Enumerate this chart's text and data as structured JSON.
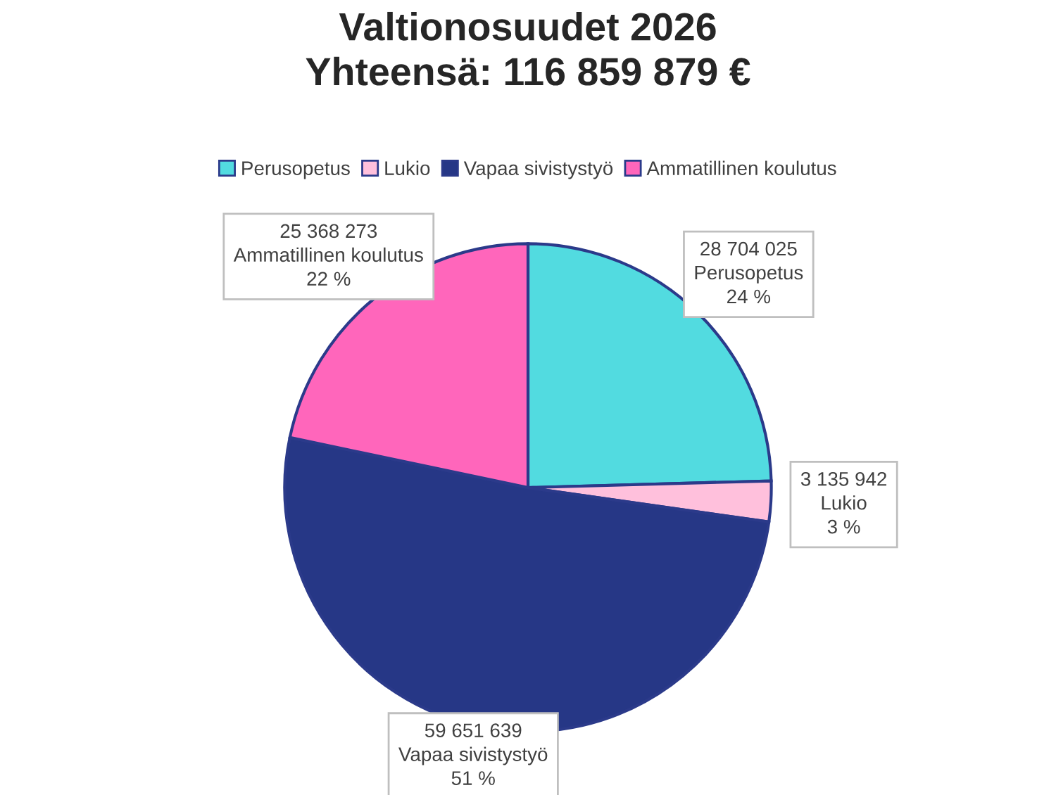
{
  "chart_data": {
    "type": "pie",
    "title": "Valtionosuudet 2026\nYhteensä: 116 859 879 €",
    "categories": [
      "Perusopetus",
      "Lukio",
      "Vapaa sivistystyö",
      "Ammatillinen koulutus"
    ],
    "values": [
      28704025,
      3135942,
      59651639,
      25368273
    ],
    "colors": [
      "#52dbe0",
      "#ffc0dc",
      "#263786",
      "#ff66bb"
    ],
    "value_labels": [
      "28 704 025\nPerusopetus\n24 %",
      "3 135 942\nLukio\n3 %",
      "59 651 639\nVapaa sivistystyö\n51 %",
      "25 368 273\nAmmatillinen koulutus\n22 %"
    ],
    "legend": "top"
  }
}
